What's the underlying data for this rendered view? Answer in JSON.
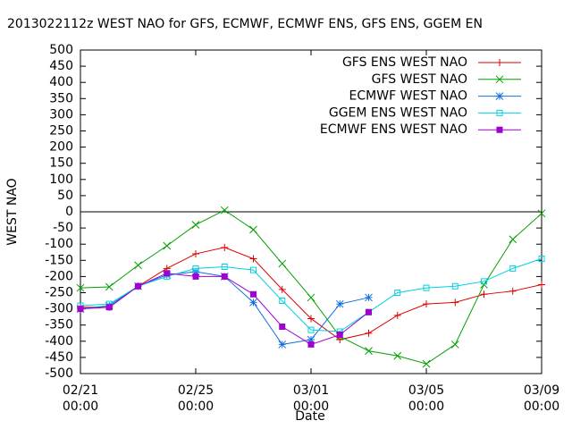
{
  "chart_data": {
    "type": "line",
    "title": "2013022112z WEST NAO for GFS, ECMWF, ECMWF ENS, GFS ENS, GGEM EN",
    "x_label": "Date",
    "y_label": "WEST NAO",
    "categories": [
      "02/21\n00:00",
      null,
      null,
      null,
      "02/25\n00:00",
      null,
      null,
      null,
      "03/01\n00:00",
      null,
      null,
      null,
      "03/05\n00:00",
      null,
      null,
      null,
      "03/09\n00:00"
    ],
    "ylim": [
      -500,
      500
    ],
    "yticks": [
      -500,
      -450,
      -400,
      -350,
      -300,
      -250,
      -200,
      -150,
      -100,
      -50,
      0,
      50,
      100,
      150,
      200,
      250,
      300,
      350,
      400,
      450,
      500
    ],
    "zero_line": true,
    "legend": "top-right",
    "series": [
      {
        "name": "GFS ENS WEST NAO",
        "color": "#e00000",
        "marker": "plus",
        "values": [
          -295,
          -295,
          -230,
          -175,
          -130,
          -110,
          -145,
          -240,
          -330,
          -395,
          -375,
          -320,
          -285,
          -280,
          -255,
          -245,
          -225
        ]
      },
      {
        "name": "GFS WEST NAO",
        "color": "#00a000",
        "marker": "cross",
        "values": [
          -235,
          -232,
          -165,
          -105,
          -40,
          5,
          -55,
          -160,
          -265,
          -385,
          -430,
          -445,
          -470,
          -410,
          -225,
          -85,
          -5
        ]
      },
      {
        "name": "ECMWF WEST NAO",
        "color": "#1070e0",
        "marker": "star",
        "values": [
          -300,
          -290,
          -230,
          -195,
          -185,
          -200,
          -280,
          -410,
          -395,
          -285,
          -265,
          null,
          null,
          null,
          null,
          null,
          null
        ]
      },
      {
        "name": "GGEM ENS WEST NAO",
        "color": "#00d0e0",
        "marker": "square",
        "values": [
          -290,
          -285,
          -230,
          -200,
          -175,
          -170,
          -180,
          -275,
          -365,
          -370,
          -310,
          -250,
          -235,
          -230,
          -215,
          -175,
          -145
        ]
      },
      {
        "name": "ECMWF ENS WEST NAO",
        "color": "#a000d0",
        "marker": "square-filled",
        "values": [
          -300,
          -295,
          -230,
          -190,
          -200,
          -200,
          -255,
          -355,
          -410,
          -380,
          -310,
          null,
          null,
          null,
          null,
          null,
          null
        ]
      }
    ]
  }
}
